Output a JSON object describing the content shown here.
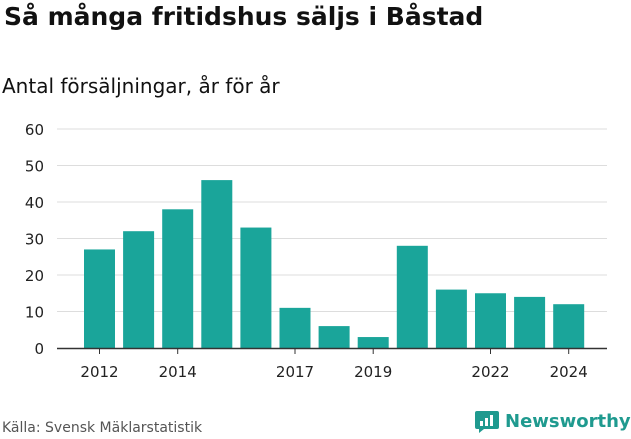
{
  "title": "Så många fritidshus säljs i Båstad",
  "subtitle": "Antal försäljningar, år för år",
  "source": "Källa: Svensk Mäklarstatistik",
  "brand": "Newsworthy",
  "colors": {
    "bar": "#1aa59a",
    "grid": "#dddddd",
    "axis": "#333333",
    "brand": "#1f9a8f"
  },
  "chart_data": {
    "type": "bar",
    "categories": [
      "2012",
      "2013",
      "2014",
      "2015",
      "2016",
      "2017",
      "2018",
      "2019",
      "2020",
      "2021",
      "2022",
      "2023",
      "2024"
    ],
    "series": [
      {
        "values": [
          27,
          32,
          38,
          46,
          33,
          11,
          6,
          3,
          28,
          16,
          15,
          14,
          12
        ]
      }
    ],
    "x_tick_labels": [
      "2012",
      "2014",
      "2017",
      "2019",
      "2022",
      "2024"
    ],
    "y_ticks": [
      0,
      10,
      20,
      30,
      40,
      50,
      60
    ],
    "ylim": [
      0,
      60
    ],
    "grid": true,
    "legend": "none"
  }
}
